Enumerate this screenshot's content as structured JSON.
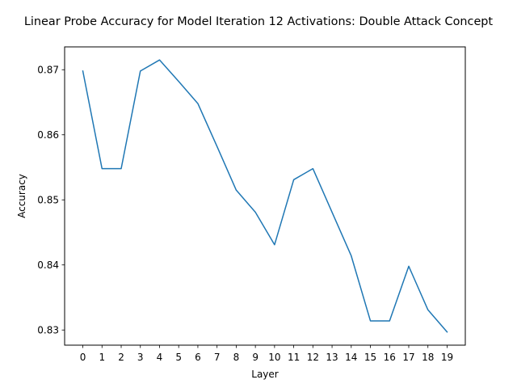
{
  "chart_data": {
    "type": "line",
    "title": "Linear Probe Accuracy for Model Iteration 12 Activations: Double Attack Concept",
    "xlabel": "Layer",
    "ylabel": "Accuracy",
    "x": [
      0,
      1,
      2,
      3,
      4,
      5,
      6,
      7,
      8,
      9,
      10,
      11,
      12,
      13,
      14,
      15,
      16,
      17,
      18,
      19
    ],
    "series": [
      {
        "name": "",
        "color": "#1f77b4",
        "values": [
          0.8698,
          0.8548,
          0.8548,
          0.8698,
          0.8715,
          0.8682,
          0.8648,
          0.8582,
          0.8515,
          0.8481,
          0.8431,
          0.8531,
          0.8548,
          0.8481,
          0.8414,
          0.8314,
          0.8314,
          0.8398,
          0.8331,
          0.8297
        ]
      }
    ],
    "xlim": [
      -0.95,
      19.95
    ],
    "ylim": [
      0.82767,
      0.87351
    ],
    "xticks": [
      "0",
      "1",
      "2",
      "3",
      "4",
      "5",
      "6",
      "7",
      "8",
      "9",
      "10",
      "11",
      "12",
      "13",
      "14",
      "15",
      "16",
      "17",
      "18",
      "19"
    ],
    "yticks": [
      0.83,
      0.84,
      0.85,
      0.86,
      0.87
    ],
    "ytick_labels": [
      "0.83",
      "0.84",
      "0.85",
      "0.86",
      "0.87"
    ],
    "grid": false,
    "legend": "none"
  }
}
